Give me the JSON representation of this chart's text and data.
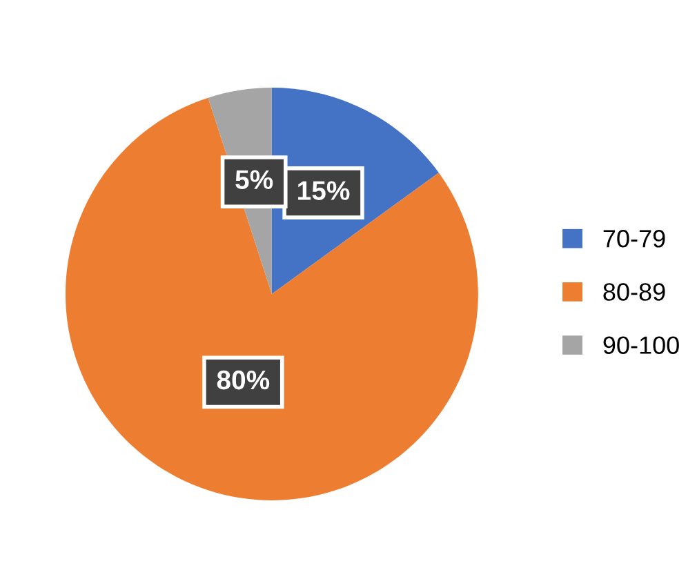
{
  "chart_data": {
    "type": "pie",
    "categories": [
      "70-79",
      "80-89",
      "90-100"
    ],
    "values": [
      15,
      80,
      5
    ],
    "colors": [
      "#4472c4",
      "#ed7d31",
      "#a5a5a5"
    ],
    "value_labels": [
      "15%",
      "80%",
      "5%"
    ],
    "legend": "right"
  }
}
